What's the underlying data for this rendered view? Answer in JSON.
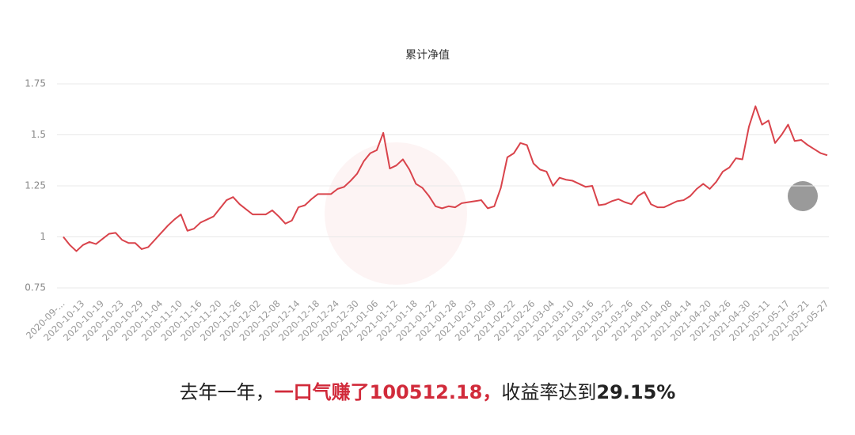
{
  "chart_data": {
    "type": "line",
    "title": "累计净值",
    "categories": [
      "2020-09-...",
      null,
      null,
      "2020-10-13",
      null,
      null,
      "2020-10-19",
      null,
      null,
      "2020-10-23",
      null,
      null,
      "2020-10-29",
      null,
      null,
      "2020-11-04",
      null,
      null,
      "2020-11-10",
      null,
      null,
      "2020-11-16",
      null,
      null,
      "2020-11-20",
      null,
      null,
      "2020-11-26",
      null,
      null,
      "2020-12-02",
      null,
      null,
      "2020-12-08",
      null,
      null,
      "2020-12-14",
      null,
      null,
      "2020-12-18",
      null,
      null,
      "2020-12-24",
      null,
      null,
      "2020-12-30",
      null,
      null,
      "2021-01-06",
      null,
      null,
      "2021-01-12",
      null,
      null,
      "2021-01-18",
      null,
      null,
      "2021-01-22",
      null,
      null,
      "2021-01-28",
      null,
      null,
      "2021-02-03",
      null,
      null,
      "2021-02-09",
      null,
      null,
      "2021-02-22",
      null,
      null,
      "2021-02-26",
      null,
      null,
      "2021-03-04",
      null,
      null,
      "2021-03-10",
      null,
      null,
      "2021-03-16",
      null,
      null,
      "2021-03-22",
      null,
      null,
      "2021-03-26",
      null,
      null,
      "2021-04-01",
      null,
      null,
      "2021-04-08",
      null,
      null,
      "2021-04-14",
      null,
      null,
      "2021-04-20",
      null,
      null,
      "2021-04-26",
      null,
      null,
      "2021-04-30",
      null,
      null,
      "2021-05-11",
      null,
      null,
      "2021-05-17",
      null,
      null,
      "2021-05-21",
      null,
      null,
      "2021-05-27"
    ],
    "values": [
      1.0,
      0.96,
      0.93,
      0.96,
      0.975,
      0.965,
      0.99,
      1.015,
      1.02,
      0.985,
      0.97,
      0.97,
      0.94,
      0.95,
      0.985,
      1.02,
      1.055,
      1.085,
      1.11,
      1.03,
      1.04,
      1.07,
      1.085,
      1.1,
      1.14,
      1.18,
      1.195,
      1.16,
      1.135,
      1.11,
      1.11,
      1.11,
      1.13,
      1.1,
      1.065,
      1.08,
      1.145,
      1.155,
      1.185,
      1.21,
      1.21,
      1.21,
      1.235,
      1.245,
      1.275,
      1.31,
      1.37,
      1.41,
      1.425,
      1.51,
      1.335,
      1.35,
      1.38,
      1.33,
      1.26,
      1.24,
      1.2,
      1.15,
      1.14,
      1.15,
      1.145,
      1.165,
      1.17,
      1.175,
      1.18,
      1.14,
      1.15,
      1.24,
      1.39,
      1.41,
      1.46,
      1.45,
      1.36,
      1.33,
      1.32,
      1.25,
      1.29,
      1.28,
      1.275,
      1.26,
      1.245,
      1.25,
      1.155,
      1.16,
      1.175,
      1.185,
      1.17,
      1.16,
      1.2,
      1.22,
      1.16,
      1.145,
      1.145,
      1.16,
      1.175,
      1.18,
      1.2,
      1.235,
      1.26,
      1.235,
      1.27,
      1.32,
      1.34,
      1.385,
      1.38,
      1.54,
      1.64,
      1.55,
      1.57,
      1.46,
      1.5,
      1.55,
      1.47,
      1.475,
      1.45,
      1.43,
      1.41,
      1.4
    ],
    "color": "#d9434b",
    "ylim": [
      0.75,
      1.75
    ],
    "yticks": [
      0.75,
      1,
      1.25,
      1.5,
      1.75
    ],
    "grid": true
  },
  "caption": {
    "part1": "去年一年，",
    "part2": "一口气赚了100512.18，",
    "part3": "收益率达到",
    "part4": "29.15%"
  }
}
